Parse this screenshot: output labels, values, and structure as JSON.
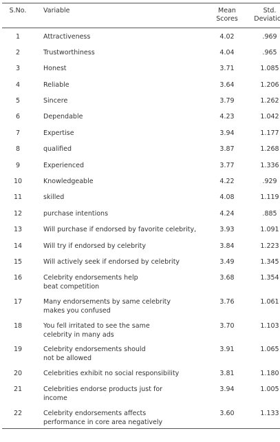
{
  "table": {
    "columns": [
      [
        "S.No."
      ],
      [
        "Variable"
      ],
      [
        "Mean",
        "Scores"
      ],
      [
        "Std.",
        "Deviation"
      ]
    ],
    "rows": [
      [
        "1",
        [
          "Attractiveness"
        ],
        "4.02",
        ".969"
      ],
      [
        "2",
        [
          "Trustworthiness"
        ],
        "4.04",
        ".965"
      ],
      [
        "3",
        [
          "Honest"
        ],
        "3.71",
        "1.085"
      ],
      [
        "4",
        [
          "Reliable"
        ],
        "3.64",
        "1.206"
      ],
      [
        "5",
        [
          "Sincere"
        ],
        "3.79",
        "1.262"
      ],
      [
        "6",
        [
          "Dependable"
        ],
        "4.23",
        "1.042"
      ],
      [
        "7",
        [
          "Expertise"
        ],
        "3.94",
        "1.177"
      ],
      [
        "8",
        [
          "qualified"
        ],
        "3.87",
        "1.268"
      ],
      [
        "9",
        [
          "Experienced"
        ],
        "3.77",
        "1.336"
      ],
      [
        "10",
        [
          "Knowledgeable"
        ],
        "4.22",
        ".929"
      ],
      [
        "11",
        [
          "skilled"
        ],
        "4.08",
        "1.119"
      ],
      [
        "12",
        [
          "purchase intentions"
        ],
        "4.24",
        ".885"
      ],
      [
        "13",
        [
          "Will purchase if endorsed by favorite celebrity,"
        ],
        "3.93",
        "1.091"
      ],
      [
        "14",
        [
          "Will try if endorsed by celebrity"
        ],
        "3.84",
        "1.223"
      ],
      [
        "15",
        [
          "Will actively seek if endorsed by celebrity"
        ],
        "3.49",
        "1.345"
      ],
      [
        "16",
        [
          "Celebrity endorsements help",
          "beat competition"
        ],
        "3.68",
        "1.354"
      ],
      [
        "17",
        [
          "Many endorsements by same celebrity",
          "makes you confused"
        ],
        "3.76",
        "1.061"
      ],
      [
        "18",
        [
          "You fell irritated to see the same",
          "celebrity in many ads"
        ],
        "3.70",
        "1.103"
      ],
      [
        "19",
        [
          "Celebrity endorsements should",
          "not be allowed"
        ],
        "3.91",
        "1.065"
      ],
      [
        "20",
        [
          "Celebrities exhibit no social responsibility"
        ],
        "3.81",
        "1.180"
      ],
      [
        "21",
        [
          "Celebrities endorse products just for",
          "income"
        ],
        "3.94",
        "1.005"
      ],
      [
        "22",
        [
          "Celebrity endorsements affects",
          "performance in core area negatively"
        ],
        "3.60",
        "1.133"
      ]
    ]
  }
}
